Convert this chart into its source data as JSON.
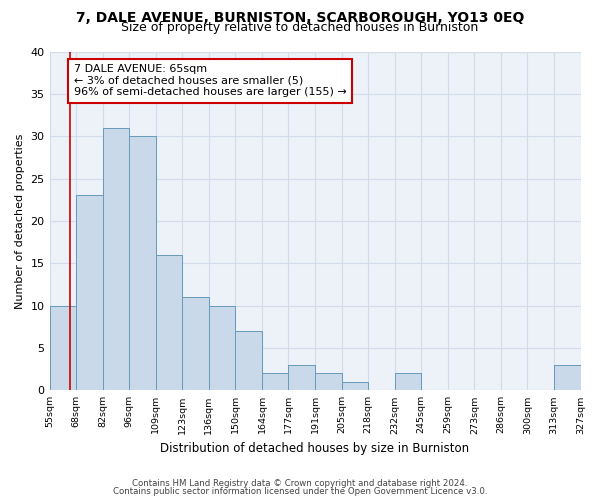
{
  "title": "7, DALE AVENUE, BURNISTON, SCARBOROUGH, YO13 0EQ",
  "subtitle": "Size of property relative to detached houses in Burniston",
  "xlabel": "Distribution of detached houses by size in Burniston",
  "ylabel": "Number of detached properties",
  "categories": [
    "55sqm",
    "68sqm",
    "82sqm",
    "96sqm",
    "109sqm",
    "123sqm",
    "136sqm",
    "150sqm",
    "164sqm",
    "177sqm",
    "191sqm",
    "205sqm",
    "218sqm",
    "232sqm",
    "245sqm",
    "259sqm",
    "273sqm",
    "286sqm",
    "300sqm",
    "313sqm",
    "327sqm"
  ],
  "values": [
    10,
    23,
    31,
    30,
    16,
    11,
    10,
    7,
    2,
    3,
    2,
    1,
    0,
    2,
    0,
    0,
    0,
    0,
    0,
    3
  ],
  "bar_color": "#c9d9ea",
  "bar_edge_color": "#6699bb",
  "annotation_box_text": "7 DALE AVENUE: 65sqm\n← 3% of detached houses are smaller (5)\n96% of semi-detached houses are larger (155) →",
  "annotation_box_color": "#ffffff",
  "annotation_box_edge_color": "#cc0000",
  "ylim": [
    0,
    40
  ],
  "yticks": [
    0,
    5,
    10,
    15,
    20,
    25,
    30,
    35,
    40
  ],
  "grid_color": "#d0dcea",
  "footer_line1": "Contains HM Land Registry data © Crown copyright and database right 2024.",
  "footer_line2": "Contains public sector information licensed under the Open Government Licence v3.0.",
  "bg_color": "#edf2f9",
  "title_fontsize": 10,
  "subtitle_fontsize": 9,
  "ann_line_color": "#cc0000"
}
